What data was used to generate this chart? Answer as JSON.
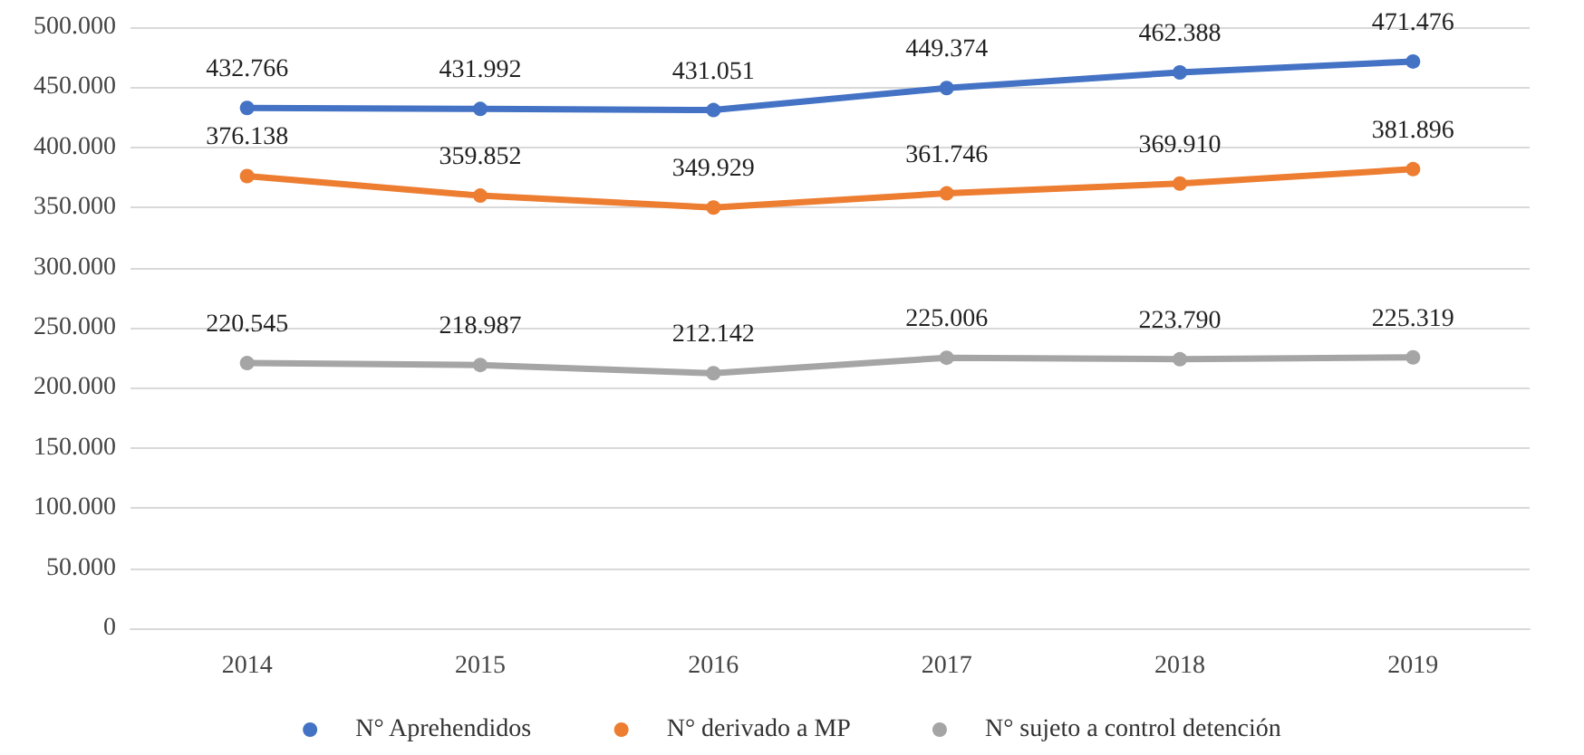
{
  "chart_data": {
    "type": "line",
    "categories": [
      "2014",
      "2015",
      "2016",
      "2017",
      "2018",
      "2019"
    ],
    "series": [
      {
        "name": "N° Aprehendidos",
        "color": "#4472c4",
        "values": [
          432766,
          431992,
          431051,
          449374,
          462388,
          471476
        ],
        "value_labels": [
          "432.766",
          "431.992",
          "431.051",
          "449.374",
          "462.388",
          "471.476"
        ]
      },
      {
        "name": "N° derivado a MP",
        "color": "#ed7d31",
        "values": [
          376138,
          359852,
          349929,
          361746,
          369910,
          381896
        ],
        "value_labels": [
          "376.138",
          "359.852",
          "349.929",
          "361.746",
          "369.910",
          "381.896"
        ]
      },
      {
        "name": "N° sujeto a control detención",
        "color": "#a5a5a5",
        "values": [
          220545,
          218987,
          212142,
          225006,
          223790,
          225319
        ],
        "value_labels": [
          "220.545",
          "218.987",
          "212.142",
          "225.006",
          "223.790",
          "225.319"
        ]
      }
    ],
    "ylim": [
      0,
      500000
    ],
    "yticks": [
      {
        "value": 0,
        "label": "0"
      },
      {
        "value": 50000,
        "label": "50.000"
      },
      {
        "value": 100000,
        "label": "100.000"
      },
      {
        "value": 150000,
        "label": "150.000"
      },
      {
        "value": 200000,
        "label": "200.000"
      },
      {
        "value": 250000,
        "label": "250.000"
      },
      {
        "value": 300000,
        "label": "300.000"
      },
      {
        "value": 350000,
        "label": "350.000"
      },
      {
        "value": 400000,
        "label": "400.000"
      },
      {
        "value": 450000,
        "label": "450.000"
      },
      {
        "value": 500000,
        "label": "500.000"
      }
    ],
    "grid": "y",
    "legend": "bottom",
    "marker": "circle",
    "line_style": "solid"
  }
}
